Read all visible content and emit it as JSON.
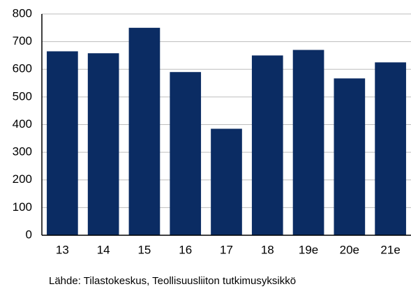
{
  "chart_data": {
    "type": "bar",
    "categories": [
      "13",
      "14",
      "15",
      "16",
      "17",
      "18",
      "19e",
      "20e",
      "21e"
    ],
    "values": [
      665,
      658,
      750,
      590,
      385,
      650,
      670,
      567,
      625
    ],
    "color": "#0b2c63",
    "ylim": [
      0,
      800
    ],
    "yticks": [
      0,
      100,
      200,
      300,
      400,
      500,
      600,
      700,
      800
    ],
    "grid": true,
    "source": "Lähde: Tilastokeskus, Teollisuusliiton tutkimusyksikkö"
  }
}
